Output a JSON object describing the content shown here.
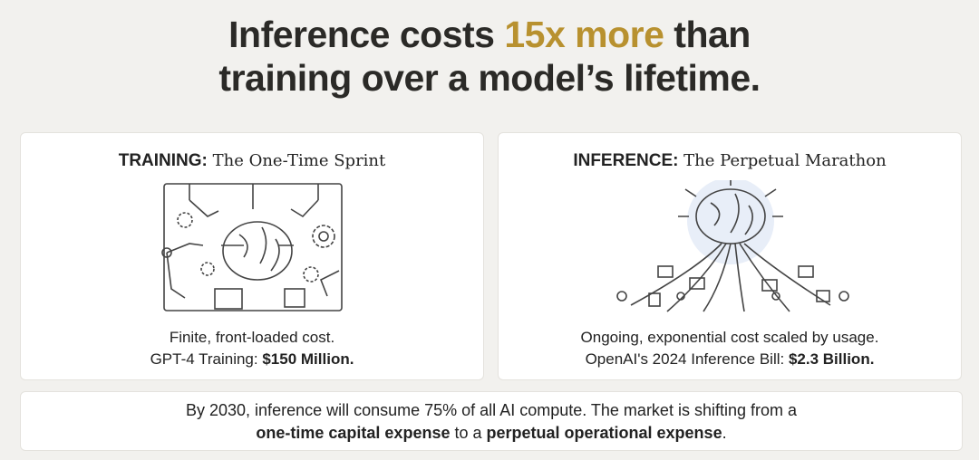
{
  "title": [
    "Inference costs ",
    "15x more",
    " than",
    "training over a model’s lifetime."
  ],
  "cards": [
    {
      "label": "TRAINING:",
      "name": " The One-Time Sprint",
      "line1": "Finite, front-loaded cost.",
      "line2_lead": "GPT-4 Training: ",
      "line2_figure": "$150 Million."
    },
    {
      "label": "INFERENCE:",
      "name": " The Perpetual Marathon",
      "line1": "Ongoing, exponential cost scaled by usage.",
      "line2_lead": "OpenAI's 2024 Inference Bill: ",
      "line2_figure": "$2.3 Billion."
    }
  ],
  "footer": [
    "By 2030, inference will consume 75% of all AI compute. The market is shifting from a",
    "one-time capital expense",
    " to a ",
    "perpetual operational expense",
    "."
  ]
}
